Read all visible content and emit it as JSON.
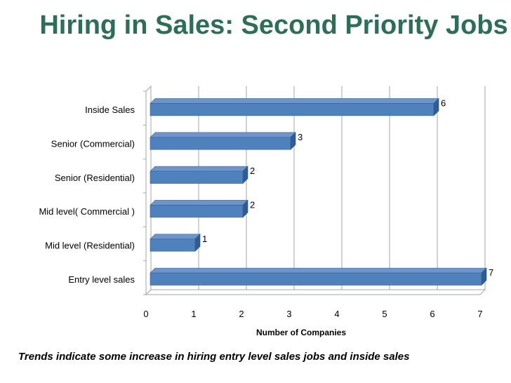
{
  "title": "Hiring in Sales: Second Priority Jobs",
  "caption": "Trends indicate some increase in hiring entry level  sales jobs and inside sales",
  "chart_data": {
    "type": "bar",
    "orientation": "horizontal",
    "style": "3d",
    "categories": [
      "Inside Sales",
      "Senior (Commercial)",
      "Senior (Residential)",
      "Mid level( Commercial )",
      "Mid level (Residential)",
      "Entry level sales"
    ],
    "values": [
      6,
      3,
      2,
      2,
      1,
      7
    ],
    "data_labels": [
      "6",
      "3",
      "2",
      "2",
      "1",
      "7"
    ],
    "xlabel": "Number of Companies",
    "ylabel": "",
    "xlim": [
      0,
      7
    ],
    "x_ticks": [
      "0",
      "1",
      "2",
      "3",
      "4",
      "5",
      "6",
      "7"
    ],
    "grid": true,
    "legend": "none",
    "bar_color": "#4f81bd"
  }
}
